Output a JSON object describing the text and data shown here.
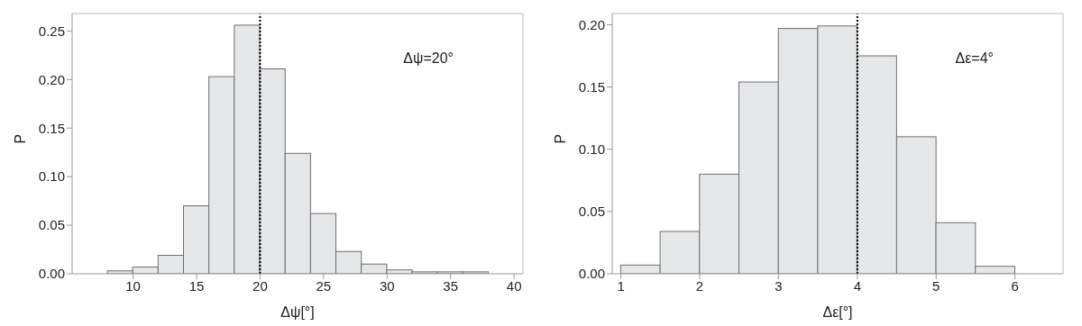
{
  "chart_data": [
    {
      "type": "histogram",
      "xlabel": "Δψ[°]",
      "ylabel": "P",
      "color": "#e6e7e9",
      "bins": [
        6,
        8,
        10,
        12,
        14,
        16,
        18,
        20,
        22,
        24,
        26,
        28,
        30,
        32,
        34,
        36,
        38,
        40
      ],
      "values": [
        0,
        0.003,
        0.007,
        0.019,
        0.07,
        0.203,
        0.256,
        0.211,
        0.124,
        0.062,
        0.023,
        0.01,
        0.004,
        0.002,
        0.002,
        0.002,
        0
      ],
      "xlim": [
        5.2,
        40.7
      ],
      "xticks": [
        10,
        15,
        20,
        25,
        30,
        35,
        40
      ],
      "ylim": [
        0,
        0.268
      ],
      "yticks": [
        {
          "value": 0,
          "label": "0.00"
        },
        {
          "value": 0.05,
          "label": "0.05"
        },
        {
          "value": 0.1,
          "label": "0.10"
        },
        {
          "value": 0.15,
          "label": "0.15"
        },
        {
          "value": 0.2,
          "label": "0.20"
        },
        {
          "value": 0.25,
          "label": "0.25"
        }
      ],
      "ref_lines": [
        {
          "axis": "x",
          "value": 20,
          "color": "#000000",
          "line_style": "dotted"
        }
      ],
      "annotations": [
        "Δψ=20°"
      ],
      "grid": false,
      "legend": false
    },
    {
      "type": "histogram",
      "xlabel": "Δε[°]",
      "ylabel": "P",
      "color": "#e6e7e9",
      "bins": [
        1,
        1.5,
        2,
        2.5,
        3,
        3.5,
        4,
        4.5,
        5,
        5.5,
        6,
        6.5
      ],
      "values": [
        0.007,
        0.034,
        0.08,
        0.154,
        0.197,
        0.199,
        0.175,
        0.11,
        0.041,
        0.006,
        0
      ],
      "xlim": [
        0.89,
        6.61
      ],
      "xticks": [
        1,
        2,
        3,
        4,
        5,
        6
      ],
      "ylim": [
        0,
        0.209
      ],
      "yticks": [
        {
          "value": 0,
          "label": "0.00"
        },
        {
          "value": 0.05,
          "label": "0.05"
        },
        {
          "value": 0.1,
          "label": "0.10"
        },
        {
          "value": 0.15,
          "label": "0.15"
        },
        {
          "value": 0.2,
          "label": "0.20"
        }
      ],
      "ref_lines": [
        {
          "axis": "x",
          "value": 4,
          "color": "#000000",
          "line_style": "dotted"
        }
      ],
      "annotations": [
        "Δε=4°"
      ],
      "grid": false,
      "legend": false
    }
  ]
}
